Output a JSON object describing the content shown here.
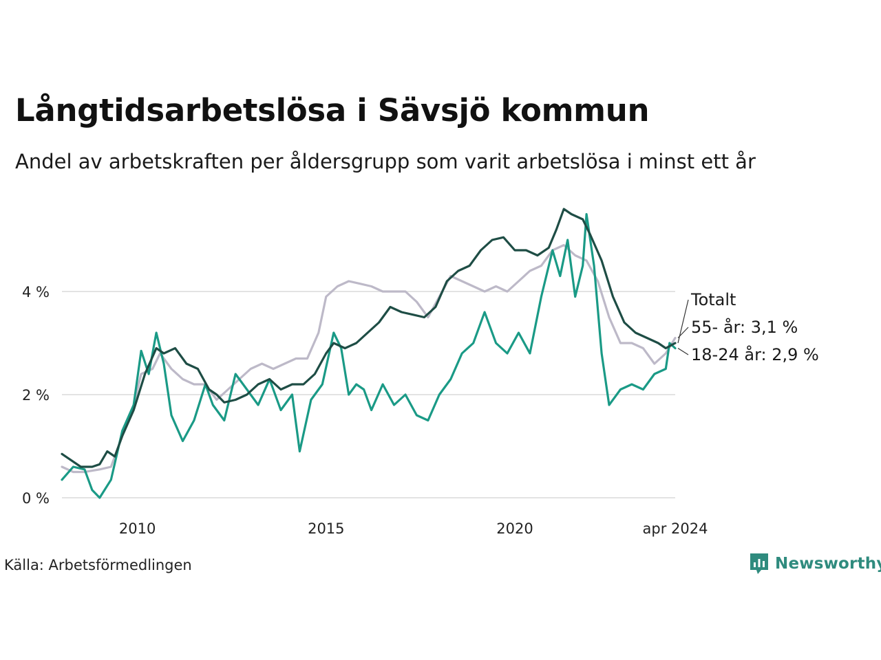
{
  "chart_data": {
    "type": "line",
    "title": "Långtidsarbetslösa i Sävsjö kommun",
    "subtitle": "Andel av arbetskraften per åldersgrupp som varit arbetslösa i minst ett år",
    "source": "Källa: Arbetsförmedlingen",
    "brand": "Newsworthy",
    "x_range": [
      2008.0,
      2024.25
    ],
    "ylim": [
      0,
      6
    ],
    "yticks": [
      {
        "value": 0,
        "label": "0 %"
      },
      {
        "value": 2,
        "label": "2 %"
      },
      {
        "value": 4,
        "label": "4 %"
      }
    ],
    "xticks": [
      {
        "value": 2010,
        "label": "2010"
      },
      {
        "value": 2015,
        "label": "2015"
      },
      {
        "value": 2020,
        "label": "2020"
      },
      {
        "value": 2024.25,
        "label": "apr 2024"
      }
    ],
    "series": [
      {
        "name": "55- år",
        "label": "55- år: 3,1 %",
        "color": "#bdb9c8",
        "points": [
          [
            2008.0,
            0.6
          ],
          [
            2008.3,
            0.5
          ],
          [
            2008.6,
            0.5
          ],
          [
            2009.0,
            0.55
          ],
          [
            2009.3,
            0.6
          ],
          [
            2009.6,
            1.2
          ],
          [
            2009.9,
            1.8
          ],
          [
            2010.1,
            2.4
          ],
          [
            2010.4,
            2.5
          ],
          [
            2010.6,
            2.8
          ],
          [
            2010.9,
            2.5
          ],
          [
            2011.2,
            2.3
          ],
          [
            2011.5,
            2.2
          ],
          [
            2011.8,
            2.2
          ],
          [
            2012.1,
            1.9
          ],
          [
            2012.4,
            2.1
          ],
          [
            2012.7,
            2.3
          ],
          [
            2013.0,
            2.5
          ],
          [
            2013.3,
            2.6
          ],
          [
            2013.6,
            2.5
          ],
          [
            2013.9,
            2.6
          ],
          [
            2014.2,
            2.7
          ],
          [
            2014.5,
            2.7
          ],
          [
            2014.8,
            3.2
          ],
          [
            2015.0,
            3.9
          ],
          [
            2015.3,
            4.1
          ],
          [
            2015.6,
            4.2
          ],
          [
            2015.9,
            4.15
          ],
          [
            2016.2,
            4.1
          ],
          [
            2016.5,
            4.0
          ],
          [
            2016.8,
            4.0
          ],
          [
            2017.1,
            4.0
          ],
          [
            2017.4,
            3.8
          ],
          [
            2017.7,
            3.5
          ],
          [
            2018.0,
            3.9
          ],
          [
            2018.3,
            4.3
          ],
          [
            2018.6,
            4.2
          ],
          [
            2018.9,
            4.1
          ],
          [
            2019.2,
            4.0
          ],
          [
            2019.5,
            4.1
          ],
          [
            2019.8,
            4.0
          ],
          [
            2020.1,
            4.2
          ],
          [
            2020.4,
            4.4
          ],
          [
            2020.7,
            4.5
          ],
          [
            2021.0,
            4.8
          ],
          [
            2021.3,
            4.9
          ],
          [
            2021.6,
            4.7
          ],
          [
            2021.9,
            4.6
          ],
          [
            2022.2,
            4.2
          ],
          [
            2022.5,
            3.5
          ],
          [
            2022.8,
            3.0
          ],
          [
            2023.1,
            3.0
          ],
          [
            2023.4,
            2.9
          ],
          [
            2023.7,
            2.6
          ],
          [
            2024.0,
            2.8
          ],
          [
            2024.25,
            3.1
          ]
        ]
      },
      {
        "name": "18-24 år",
        "label": "18-24 år: 2,9 %",
        "color": "#1a9a86",
        "points": [
          [
            2008.0,
            0.35
          ],
          [
            2008.3,
            0.6
          ],
          [
            2008.6,
            0.55
          ],
          [
            2008.8,
            0.15
          ],
          [
            2009.0,
            0.0
          ],
          [
            2009.3,
            0.35
          ],
          [
            2009.6,
            1.3
          ],
          [
            2009.9,
            1.8
          ],
          [
            2010.1,
            2.85
          ],
          [
            2010.3,
            2.4
          ],
          [
            2010.5,
            3.2
          ],
          [
            2010.7,
            2.6
          ],
          [
            2010.9,
            1.6
          ],
          [
            2011.2,
            1.1
          ],
          [
            2011.5,
            1.5
          ],
          [
            2011.8,
            2.2
          ],
          [
            2012.0,
            1.8
          ],
          [
            2012.3,
            1.5
          ],
          [
            2012.6,
            2.4
          ],
          [
            2012.9,
            2.1
          ],
          [
            2013.2,
            1.8
          ],
          [
            2013.5,
            2.3
          ],
          [
            2013.8,
            1.7
          ],
          [
            2014.1,
            2.0
          ],
          [
            2014.3,
            0.9
          ],
          [
            2014.6,
            1.9
          ],
          [
            2014.9,
            2.2
          ],
          [
            2015.2,
            3.2
          ],
          [
            2015.4,
            2.9
          ],
          [
            2015.6,
            2.0
          ],
          [
            2015.8,
            2.2
          ],
          [
            2016.0,
            2.1
          ],
          [
            2016.2,
            1.7
          ],
          [
            2016.5,
            2.2
          ],
          [
            2016.8,
            1.8
          ],
          [
            2017.1,
            2.0
          ],
          [
            2017.4,
            1.6
          ],
          [
            2017.7,
            1.5
          ],
          [
            2018.0,
            2.0
          ],
          [
            2018.3,
            2.3
          ],
          [
            2018.6,
            2.8
          ],
          [
            2018.9,
            3.0
          ],
          [
            2019.2,
            3.6
          ],
          [
            2019.5,
            3.0
          ],
          [
            2019.8,
            2.8
          ],
          [
            2020.1,
            3.2
          ],
          [
            2020.4,
            2.8
          ],
          [
            2020.7,
            3.9
          ],
          [
            2021.0,
            4.8
          ],
          [
            2021.2,
            4.3
          ],
          [
            2021.4,
            5.0
          ],
          [
            2021.6,
            3.9
          ],
          [
            2021.8,
            4.5
          ],
          [
            2021.9,
            5.5
          ],
          [
            2022.1,
            4.5
          ],
          [
            2022.3,
            2.8
          ],
          [
            2022.5,
            1.8
          ],
          [
            2022.8,
            2.1
          ],
          [
            2023.1,
            2.2
          ],
          [
            2023.4,
            2.1
          ],
          [
            2023.7,
            2.4
          ],
          [
            2024.0,
            2.5
          ],
          [
            2024.1,
            3.0
          ],
          [
            2024.25,
            2.9
          ]
        ]
      },
      {
        "name": "Totalt",
        "label": "Totalt",
        "color": "#1e4d45",
        "points": [
          [
            2008.0,
            0.85
          ],
          [
            2008.2,
            0.75
          ],
          [
            2008.5,
            0.6
          ],
          [
            2008.8,
            0.6
          ],
          [
            2009.0,
            0.65
          ],
          [
            2009.2,
            0.9
          ],
          [
            2009.4,
            0.8
          ],
          [
            2009.6,
            1.2
          ],
          [
            2009.9,
            1.7
          ],
          [
            2010.2,
            2.4
          ],
          [
            2010.5,
            2.9
          ],
          [
            2010.7,
            2.8
          ],
          [
            2011.0,
            2.9
          ],
          [
            2011.3,
            2.6
          ],
          [
            2011.6,
            2.5
          ],
          [
            2011.9,
            2.1
          ],
          [
            2012.1,
            2.0
          ],
          [
            2012.3,
            1.85
          ],
          [
            2012.6,
            1.9
          ],
          [
            2012.9,
            2.0
          ],
          [
            2013.2,
            2.2
          ],
          [
            2013.5,
            2.3
          ],
          [
            2013.8,
            2.1
          ],
          [
            2014.1,
            2.2
          ],
          [
            2014.4,
            2.2
          ],
          [
            2014.7,
            2.4
          ],
          [
            2015.0,
            2.8
          ],
          [
            2015.2,
            3.0
          ],
          [
            2015.5,
            2.9
          ],
          [
            2015.8,
            3.0
          ],
          [
            2016.1,
            3.2
          ],
          [
            2016.4,
            3.4
          ],
          [
            2016.7,
            3.7
          ],
          [
            2017.0,
            3.6
          ],
          [
            2017.3,
            3.55
          ],
          [
            2017.6,
            3.5
          ],
          [
            2017.9,
            3.7
          ],
          [
            2018.2,
            4.2
          ],
          [
            2018.5,
            4.4
          ],
          [
            2018.8,
            4.5
          ],
          [
            2019.1,
            4.8
          ],
          [
            2019.4,
            5.0
          ],
          [
            2019.7,
            5.05
          ],
          [
            2020.0,
            4.8
          ],
          [
            2020.3,
            4.8
          ],
          [
            2020.6,
            4.7
          ],
          [
            2020.9,
            4.85
          ],
          [
            2021.1,
            5.2
          ],
          [
            2021.3,
            5.6
          ],
          [
            2021.5,
            5.5
          ],
          [
            2021.8,
            5.4
          ],
          [
            2022.0,
            5.1
          ],
          [
            2022.3,
            4.6
          ],
          [
            2022.6,
            3.9
          ],
          [
            2022.9,
            3.4
          ],
          [
            2023.2,
            3.2
          ],
          [
            2023.5,
            3.1
          ],
          [
            2023.8,
            3.0
          ],
          [
            2024.0,
            2.9
          ],
          [
            2024.25,
            3.0
          ]
        ]
      }
    ]
  }
}
